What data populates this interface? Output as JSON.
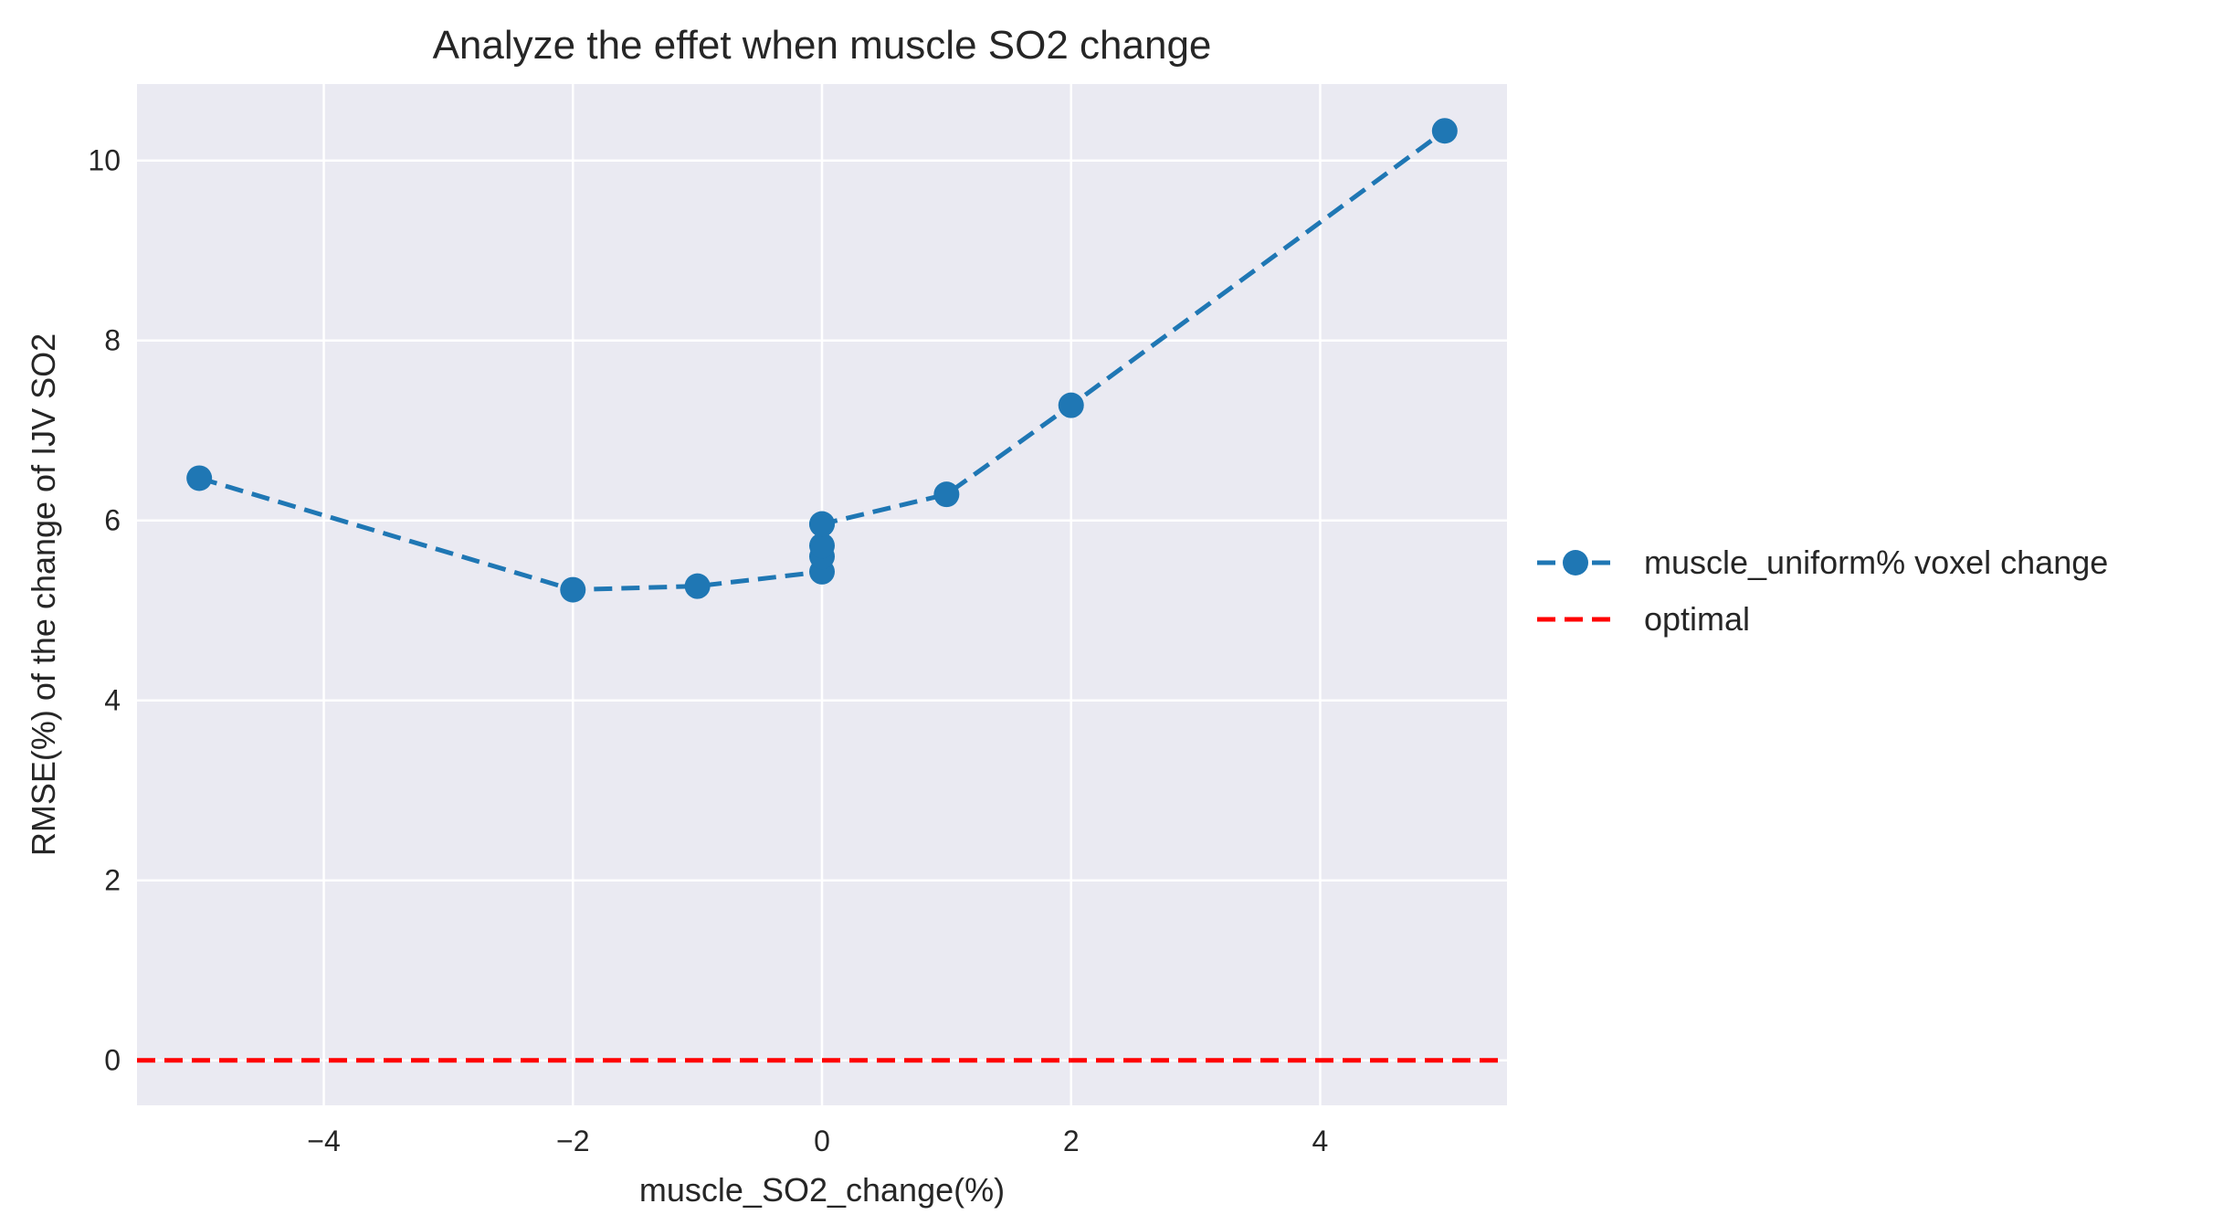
{
  "chart_data": {
    "type": "line",
    "title": "Analyze the effet when muscle SO2 change",
    "xlabel": "muscle_SO2_change(%)",
    "ylabel": "RMSE(%) of the change of IJV SO2",
    "xlim": [
      -5.5,
      5.5
    ],
    "ylim": [
      -0.5,
      10.85
    ],
    "xticks": [
      -4,
      -2,
      0,
      2,
      4
    ],
    "xtick_labels": [
      "−4",
      "−2",
      "0",
      "2",
      "4"
    ],
    "yticks": [
      0,
      2,
      4,
      6,
      8,
      10
    ],
    "ytick_labels": [
      "0",
      "2",
      "4",
      "6",
      "8",
      "10"
    ],
    "grid": true,
    "legend_position": "outside-right",
    "series": [
      {
        "name": "muscle_uniform% voxel change",
        "color": "#1f77b4",
        "line_style": "dashed",
        "marker": "circle",
        "x": [
          -5,
          -2,
          -1,
          0,
          0,
          0,
          0,
          0,
          1,
          2,
          5
        ],
        "y": [
          6.47,
          5.23,
          5.27,
          5.43,
          5.6,
          5.72,
          5.96,
          5.96,
          6.29,
          7.28,
          10.33
        ]
      },
      {
        "name": "optimal",
        "color": "#ff0000",
        "line_style": "dashed",
        "marker": "none",
        "y": 0
      }
    ]
  }
}
